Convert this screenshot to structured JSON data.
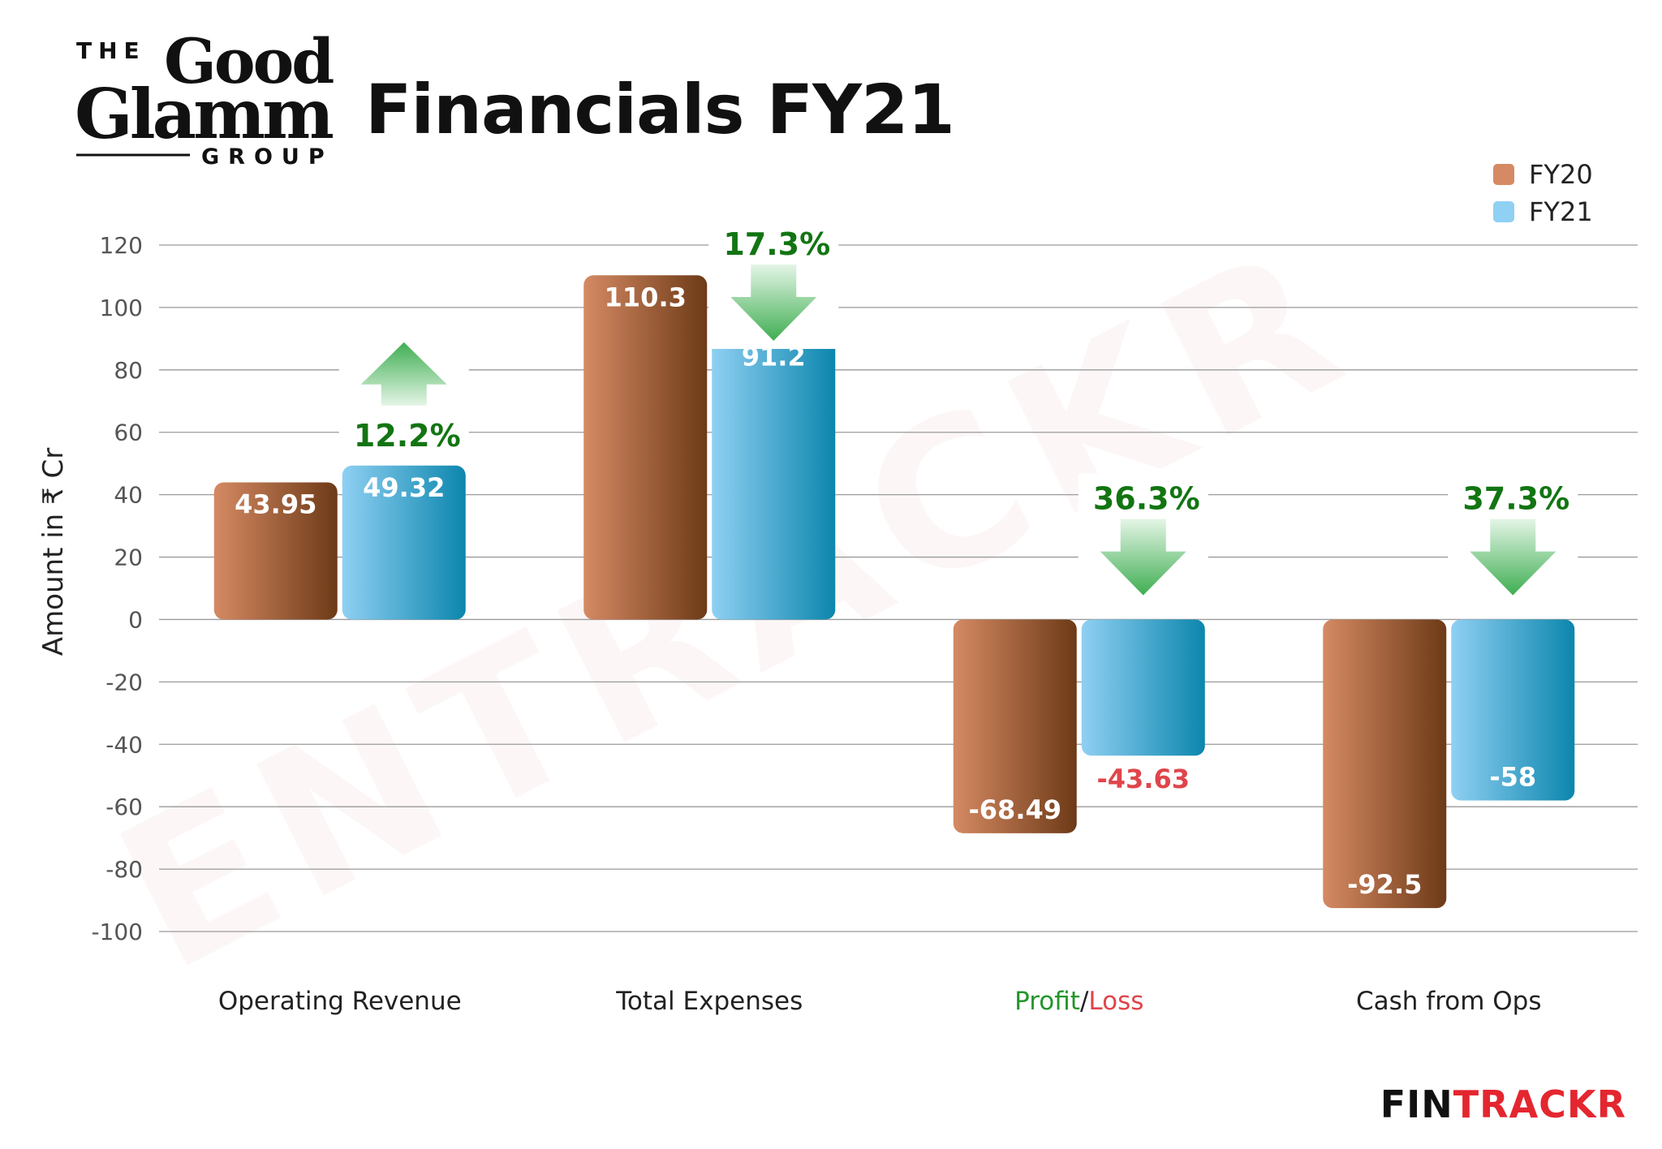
{
  "brand": {
    "logo_line1": "THE",
    "logo_line2": "Good",
    "logo_line3": "Glamm",
    "logo_line4": "GROUP"
  },
  "header": {
    "title": "Financials FY21"
  },
  "footer": {
    "logo_part1": "FIN",
    "logo_part2": "TRACKR"
  },
  "watermark": "ENTRACKR",
  "colors": {
    "fy20_light": "#d58a63",
    "fy20_dark": "#6d3a17",
    "fy21_light": "#8fd0f3",
    "fy21_dark": "#0c86ad",
    "positive_label": "#ffffff",
    "negative_label": "#e0454b",
    "arrow_green": "#3fae52",
    "pct_green": "#127512",
    "profit_green": "#23962b",
    "loss_red": "#e0454b",
    "footer_fin": "#111111",
    "footer_trackr": "#e4262f"
  },
  "chart_data": {
    "type": "bar",
    "ylabel": "Amount in ₹ Cr",
    "ylim": [
      -100,
      120
    ],
    "yticks": [
      120,
      100,
      80,
      60,
      40,
      20,
      0,
      -20,
      -40,
      -60,
      -80,
      -100
    ],
    "grid": true,
    "legend_position": "top-right",
    "categories": [
      {
        "label": "Operating Revenue",
        "parts": [
          {
            "text": "Operating Revenue",
            "color": "#222222"
          }
        ]
      },
      {
        "label": "Total Expenses",
        "parts": [
          {
            "text": "Total Expenses",
            "color": "#222222"
          }
        ]
      },
      {
        "label": "Profit/Loss",
        "parts": [
          {
            "text": "Profit",
            "color": "#23962b"
          },
          {
            "text": "/",
            "color": "#222222"
          },
          {
            "text": "Loss",
            "color": "#e0454b"
          }
        ]
      },
      {
        "label": "Cash from Ops",
        "parts": [
          {
            "text": "Cash from Ops",
            "color": "#222222"
          }
        ]
      }
    ],
    "series": [
      {
        "name": "FY20",
        "values": [
          43.95,
          110.3,
          -68.49,
          -92.5
        ],
        "labels": [
          "43.95",
          "110.3",
          "-68.49",
          "-92.5"
        ]
      },
      {
        "name": "FY21",
        "values": [
          49.32,
          91.2,
          -43.63,
          -58
        ],
        "labels": [
          "49.32",
          "91.2",
          "-43.63",
          "-58"
        ]
      }
    ],
    "annotations": [
      {
        "text": "12.2%",
        "arrow": "up"
      },
      {
        "text": "17.3%",
        "arrow": "down"
      },
      {
        "text": "36.3%",
        "arrow": "down"
      },
      {
        "text": "37.3%",
        "arrow": "down"
      }
    ]
  }
}
